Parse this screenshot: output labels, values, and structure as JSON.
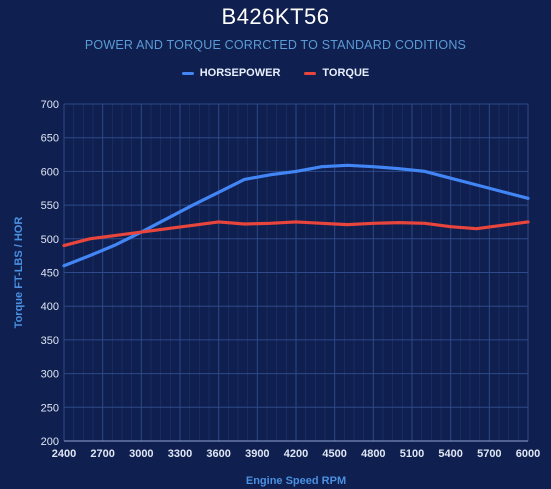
{
  "chart_data": {
    "type": "line",
    "title": "B426KT56",
    "subtitle": "POWER AND TORQUE CORRCTED TO STANDARD CODITIONS",
    "xlabel": "Engine Speed RPM",
    "ylabel": "Torque FT-LBS / HOR",
    "legend_position": "top",
    "grid": true,
    "xlim": [
      2400,
      6000
    ],
    "ylim": [
      200,
      700
    ],
    "x_ticks": [
      2400,
      2700,
      3000,
      3300,
      3600,
      3900,
      4200,
      4500,
      4800,
      5100,
      5400,
      5700,
      6000
    ],
    "y_ticks": [
      200,
      250,
      300,
      350,
      400,
      450,
      500,
      550,
      600,
      650,
      700
    ],
    "x": [
      2400,
      2600,
      2800,
      3000,
      3200,
      3400,
      3600,
      3800,
      4000,
      4200,
      4400,
      4600,
      4800,
      5000,
      5200,
      5400,
      5600,
      5800,
      6000
    ],
    "series": [
      {
        "name": "HORSEPOWER",
        "color": "#4285f4",
        "values": [
          460,
          475,
          491,
          510,
          530,
          550,
          569,
          588,
          595,
          600,
          607,
          609,
          607,
          604,
          600,
          590,
          580,
          570,
          560
        ]
      },
      {
        "name": "TORQUE",
        "color": "#e8453c",
        "values": [
          490,
          500,
          505,
          510,
          515,
          520,
          525,
          522,
          523,
          525,
          523,
          521,
          523,
          524,
          523,
          518,
          515,
          520,
          525
        ]
      }
    ]
  },
  "colors": {
    "background": "#0f1f4f",
    "grid": "#2e4a8a",
    "tick_text": "#dfe6f5",
    "axis_title": "#4a90e2"
  }
}
